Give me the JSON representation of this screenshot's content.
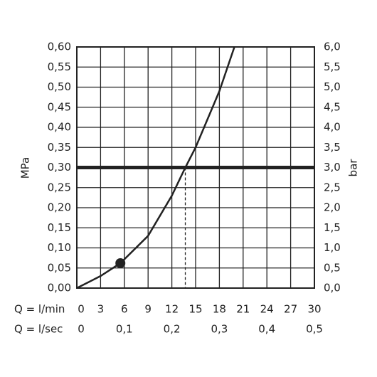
{
  "chart_data": {
    "type": "line",
    "ylabel": "MPa",
    "y2label": "bar",
    "xlabel": "Q = l/min",
    "x2label": "Q = l/sec",
    "x": [
      0,
      3,
      5.5,
      9,
      12,
      13.7,
      15,
      18,
      19.9
    ],
    "values": [
      0,
      0.03,
      0.062,
      0.13,
      0.23,
      0.3,
      0.35,
      0.49,
      0.6
    ],
    "color": "#222222",
    "marker": {
      "x": 5.5,
      "y": 0.062
    },
    "hline": 0.3,
    "vline": 13.7,
    "grid": true,
    "xlim": [
      0,
      30
    ],
    "xticks": [
      0,
      3,
      6,
      9,
      12,
      15,
      18,
      21,
      24,
      27,
      30
    ],
    "x2lim": [
      0,
      0.5
    ],
    "x2ticks": [
      0,
      {
        "value": 0.1,
        "label": "0,1"
      },
      {
        "value": 0.2,
        "label": "0,2"
      },
      {
        "value": 0.3,
        "label": "0,3"
      },
      {
        "value": 0.4,
        "label": "0,4"
      },
      {
        "value": 0.5,
        "label": "0,5"
      }
    ],
    "ylim": [
      0,
      0.6
    ],
    "yticks": [
      {
        "value": 0,
        "label": "0,00"
      },
      {
        "value": 0.05,
        "label": "0,05"
      },
      {
        "value": 0.1,
        "label": "0,10"
      },
      {
        "value": 0.15,
        "label": "0,15"
      },
      {
        "value": 0.2,
        "label": "0,20"
      },
      {
        "value": 0.25,
        "label": "0,25"
      },
      {
        "value": 0.3,
        "label": "0,30"
      },
      {
        "value": 0.35,
        "label": "0,35"
      },
      {
        "value": 0.4,
        "label": "0,40"
      },
      {
        "value": 0.45,
        "label": "0,45"
      },
      {
        "value": 0.5,
        "label": "0,50"
      },
      {
        "value": 0.55,
        "label": "0,55"
      },
      {
        "value": 0.6,
        "label": "0,60"
      }
    ],
    "y2lim": [
      0,
      6
    ],
    "y2ticks": [
      {
        "value": 0,
        "label": "0,0"
      },
      {
        "value": 0.5,
        "label": "0,5"
      },
      {
        "value": 1,
        "label": "1,0"
      },
      {
        "value": 1.5,
        "label": "1,5"
      },
      {
        "value": 2,
        "label": "2,0"
      },
      {
        "value": 2.5,
        "label": "2,5"
      },
      {
        "value": 3,
        "label": "3,0"
      },
      {
        "value": 3.5,
        "label": "3,5"
      },
      {
        "value": 4,
        "label": "4,0"
      },
      {
        "value": 4.5,
        "label": "4,5"
      },
      {
        "value": 5,
        "label": "5,0"
      },
      {
        "value": 5.5,
        "label": "5,5"
      },
      {
        "value": 6,
        "label": "6,0"
      }
    ]
  }
}
